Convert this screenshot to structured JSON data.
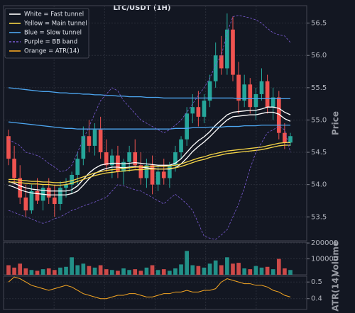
{
  "chart_data": {
    "type": "candlestick",
    "title": "LTC/USDT (1H)",
    "up_color": "#26a69a",
    "down_color": "#ef5350",
    "grid": true,
    "legend": "upper left",
    "price": {
      "ylabel": "Price",
      "ylim": [
        53.13,
        56.77
      ],
      "yticks": [
        {
          "value": 53.5,
          "label": "53.5"
        },
        {
          "value": 54,
          "label": "54.0"
        },
        {
          "value": 54.5,
          "label": "54.5"
        },
        {
          "value": 55,
          "label": "55.0"
        },
        {
          "value": 55.5,
          "label": "55.5"
        },
        {
          "value": 56,
          "label": "56.0"
        },
        {
          "value": 56.5,
          "label": "56.5"
        }
      ]
    },
    "open": [
      54.75,
      54.4,
      54.1,
      53.8,
      53.6,
      53.9,
      53.75,
      53.95,
      53.8,
      53.7,
      53.95,
      54.0,
      54.15,
      54.4,
      54.75,
      54.6,
      54.85,
      54.5,
      54.3,
      54.45,
      54.2,
      54.35,
      54.5,
      54.3,
      54.1,
      54.3,
      54.0,
      54.2,
      54.1,
      54.3,
      54.5,
      54.7,
      55.1,
      55.2,
      55.05,
      55.3,
      55.6,
      56.0,
      55.8,
      56.4,
      55.7,
      55.3,
      55.55,
      55.2,
      55.4,
      55.6,
      55.2,
      55.35,
      54.8,
      54.65
    ],
    "high": [
      54.85,
      54.6,
      54.3,
      54.0,
      54.0,
      54.1,
      54.0,
      54.1,
      54.0,
      54.05,
      54.1,
      54.2,
      54.5,
      54.9,
      55.0,
      54.95,
      55.05,
      54.7,
      54.55,
      54.6,
      54.4,
      54.6,
      54.7,
      54.5,
      54.4,
      54.45,
      54.3,
      54.4,
      54.35,
      54.6,
      54.75,
      55.2,
      55.4,
      55.45,
      55.4,
      55.7,
      56.2,
      56.3,
      56.65,
      56.6,
      55.9,
      55.7,
      55.65,
      55.5,
      55.8,
      55.7,
      55.5,
      55.45,
      54.95,
      54.8
    ],
    "low": [
      54.3,
      54.0,
      53.7,
      53.5,
      53.55,
      53.7,
      53.6,
      53.7,
      53.5,
      53.6,
      53.8,
      53.85,
      54.0,
      54.3,
      54.5,
      54.45,
      54.4,
      54.2,
      54.1,
      54.1,
      54.0,
      54.2,
      54.25,
      54.0,
      53.95,
      53.85,
      53.9,
      54.0,
      53.95,
      54.2,
      54.4,
      54.6,
      54.95,
      54.9,
      54.95,
      55.2,
      55.5,
      55.7,
      55.7,
      55.6,
      55.1,
      55.2,
      55.1,
      55.0,
      55.3,
      55.1,
      55.0,
      54.7,
      54.55,
      54.6
    ],
    "close": [
      54.4,
      54.1,
      53.8,
      53.6,
      53.9,
      53.75,
      53.95,
      53.8,
      53.7,
      53.95,
      54.0,
      54.15,
      54.4,
      54.75,
      54.6,
      54.85,
      54.5,
      54.3,
      54.45,
      54.2,
      54.35,
      54.5,
      54.3,
      54.1,
      54.3,
      54.0,
      54.2,
      54.1,
      54.3,
      54.5,
      54.7,
      55.1,
      55.2,
      55.05,
      55.3,
      55.6,
      56.0,
      55.8,
      56.4,
      55.7,
      55.3,
      55.55,
      55.2,
      55.4,
      55.6,
      55.2,
      55.35,
      54.8,
      54.65,
      54.75
    ],
    "overlays": [
      {
        "name": "White = Fast tunnel",
        "color": "#ffffff",
        "dashed": false,
        "lines": [
          [
            54.05,
            54.02,
            53.98,
            53.95,
            53.93,
            53.92,
            53.91,
            53.9,
            53.9,
            53.9,
            53.9,
            53.92,
            53.98,
            54.08,
            54.18,
            54.25,
            54.3,
            54.32,
            54.33,
            54.33,
            54.32,
            54.33,
            54.34,
            54.33,
            54.32,
            54.31,
            54.3,
            54.3,
            54.3,
            54.33,
            54.4,
            54.5,
            54.6,
            54.68,
            54.74,
            54.82,
            54.92,
            55.0,
            55.08,
            55.12,
            55.13,
            55.14,
            55.15,
            55.15,
            55.17,
            55.2,
            55.2,
            55.18,
            55.12,
            55.08
          ],
          [
            53.99,
            53.96,
            53.92,
            53.89,
            53.87,
            53.86,
            53.85,
            53.84,
            53.84,
            53.84,
            53.84,
            53.86,
            53.9,
            53.99,
            54.09,
            54.17,
            54.22,
            54.25,
            54.27,
            54.27,
            54.26,
            54.27,
            54.28,
            54.27,
            54.26,
            54.25,
            54.24,
            54.24,
            54.24,
            54.26,
            54.32,
            54.41,
            54.51,
            54.59,
            54.66,
            54.74,
            54.83,
            54.92,
            55.0,
            55.05,
            55.06,
            55.07,
            55.08,
            55.08,
            55.1,
            55.12,
            55.12,
            55.09,
            55.02,
            54.98
          ]
        ]
      },
      {
        "name": "Yellow = Main tunnel",
        "color": "#f5d547",
        "dashed": false,
        "lines": [
          [
            54.08,
            54.08,
            54.07,
            54.06,
            54.05,
            54.05,
            54.04,
            54.04,
            54.03,
            54.03,
            54.04,
            54.06,
            54.09,
            54.12,
            54.15,
            54.18,
            54.2,
            54.22,
            54.23,
            54.24,
            54.25,
            54.26,
            54.27,
            54.27,
            54.28,
            54.28,
            54.28,
            54.28,
            54.29,
            54.3,
            54.32,
            54.35,
            54.38,
            54.41,
            54.43,
            54.46,
            54.48,
            54.5,
            54.52,
            54.53,
            54.54,
            54.55,
            54.56,
            54.57,
            54.58,
            54.6,
            54.62,
            54.64,
            54.65,
            54.65
          ],
          [
            54.04,
            54.04,
            54.03,
            54.02,
            54.01,
            54.01,
            54.0,
            54.0,
            53.99,
            53.99,
            54.0,
            54.02,
            54.05,
            54.08,
            54.11,
            54.14,
            54.16,
            54.18,
            54.19,
            54.2,
            54.21,
            54.22,
            54.23,
            54.23,
            54.24,
            54.24,
            54.24,
            54.24,
            54.25,
            54.26,
            54.28,
            54.31,
            54.34,
            54.37,
            54.39,
            54.42,
            54.44,
            54.46,
            54.48,
            54.49,
            54.5,
            54.51,
            54.52,
            54.53,
            54.54,
            54.56,
            54.58,
            54.6,
            54.61,
            54.61
          ]
        ]
      },
      {
        "name": "Blue = Slow tunnel",
        "color": "#4da6f0",
        "dashed": false,
        "lines": [
          [
            55.5,
            55.49,
            55.48,
            55.47,
            55.46,
            55.45,
            55.44,
            55.44,
            55.43,
            55.42,
            55.42,
            55.41,
            55.41,
            55.4,
            55.4,
            55.39,
            55.39,
            55.38,
            55.38,
            55.37,
            55.37,
            55.36,
            55.36,
            55.36,
            55.35,
            55.35,
            55.35,
            55.34,
            55.34,
            55.34,
            55.34,
            55.34,
            55.34,
            55.34,
            55.34,
            55.34,
            55.34,
            55.34,
            55.34,
            55.34,
            55.33,
            55.33,
            55.33,
            55.33,
            55.33,
            55.33,
            55.33,
            55.33,
            55.33,
            55.33
          ],
          [
            54.97,
            54.96,
            54.95,
            54.94,
            54.93,
            54.92,
            54.91,
            54.9,
            54.89,
            54.88,
            54.87,
            54.87,
            54.86,
            54.86,
            54.86,
            54.86,
            54.86,
            54.86,
            54.86,
            54.86,
            54.86,
            54.86,
            54.86,
            54.86,
            54.86,
            54.86,
            54.86,
            54.86,
            54.86,
            54.87,
            54.87,
            54.87,
            54.88,
            54.88,
            54.88,
            54.89,
            54.89,
            54.89,
            54.9,
            54.9,
            54.9,
            54.91,
            54.91,
            54.91,
            54.92,
            54.92,
            54.92,
            54.92,
            54.92,
            54.92
          ]
        ]
      },
      {
        "name": "Purple = BB band",
        "color": "#7b5cd6",
        "dashed": true,
        "lines": [
          [
            54.7,
            54.65,
            54.6,
            54.5,
            54.48,
            54.45,
            54.4,
            54.33,
            54.27,
            54.2,
            54.22,
            54.3,
            54.5,
            54.7,
            54.9,
            55.1,
            55.3,
            55.4,
            55.5,
            55.45,
            55.3,
            55.2,
            55.1,
            55.0,
            54.95,
            54.9,
            54.85,
            54.8,
            54.85,
            54.92,
            55.0,
            55.12,
            55.25,
            55.38,
            55.5,
            55.65,
            55.85,
            56.0,
            56.35,
            56.6,
            56.62,
            56.6,
            56.58,
            56.55,
            56.5,
            56.42,
            56.35,
            56.32,
            56.3,
            56.2
          ],
          [
            53.6,
            53.57,
            53.53,
            53.5,
            53.47,
            53.43,
            53.4,
            53.43,
            53.47,
            53.5,
            53.55,
            53.6,
            53.63,
            53.67,
            53.7,
            53.73,
            53.77,
            53.8,
            53.9,
            54.0,
            53.98,
            53.95,
            53.92,
            53.9,
            53.85,
            53.8,
            53.75,
            53.7,
            53.78,
            53.85,
            53.78,
            53.7,
            53.6,
            53.4,
            53.2,
            53.17,
            53.15,
            53.22,
            53.3,
            53.5,
            53.7,
            53.95,
            54.25,
            54.5,
            54.65,
            54.8,
            54.85,
            54.9,
            54.85,
            54.5
          ]
        ]
      }
    ],
    "volume": {
      "ylabel": "Volume",
      "ylim": [
        0,
        205000
      ],
      "yticks": [
        100000,
        200000
      ],
      "values": [
        60000,
        45000,
        70000,
        40000,
        30000,
        25000,
        35000,
        40000,
        30000,
        45000,
        50000,
        110000,
        60000,
        70000,
        55000,
        45000,
        60000,
        35000,
        30000,
        25000,
        40000,
        30000,
        35000,
        25000,
        45000,
        60000,
        30000,
        35000,
        25000,
        40000,
        65000,
        150000,
        60000,
        55000,
        45000,
        70000,
        90000,
        60000,
        110000,
        70000,
        75000,
        40000,
        35000,
        55000,
        45000,
        50000,
        35000,
        100000,
        40000,
        30000
      ]
    },
    "atr": {
      "name": "Orange = ATR(14)",
      "ylabel": "ATR(14)",
      "color": "#f5a623",
      "ylim": [
        0.335,
        0.535
      ],
      "yticks": [
        0.4,
        0.5
      ],
      "values": [
        0.5,
        0.53,
        0.52,
        0.5,
        0.48,
        0.47,
        0.46,
        0.45,
        0.46,
        0.47,
        0.48,
        0.47,
        0.45,
        0.43,
        0.42,
        0.41,
        0.4,
        0.4,
        0.41,
        0.42,
        0.42,
        0.43,
        0.43,
        0.42,
        0.41,
        0.41,
        0.42,
        0.43,
        0.43,
        0.44,
        0.44,
        0.45,
        0.44,
        0.44,
        0.45,
        0.45,
        0.46,
        0.5,
        0.52,
        0.51,
        0.5,
        0.49,
        0.49,
        0.48,
        0.48,
        0.47,
        0.45,
        0.44,
        0.42,
        0.41
      ]
    }
  }
}
